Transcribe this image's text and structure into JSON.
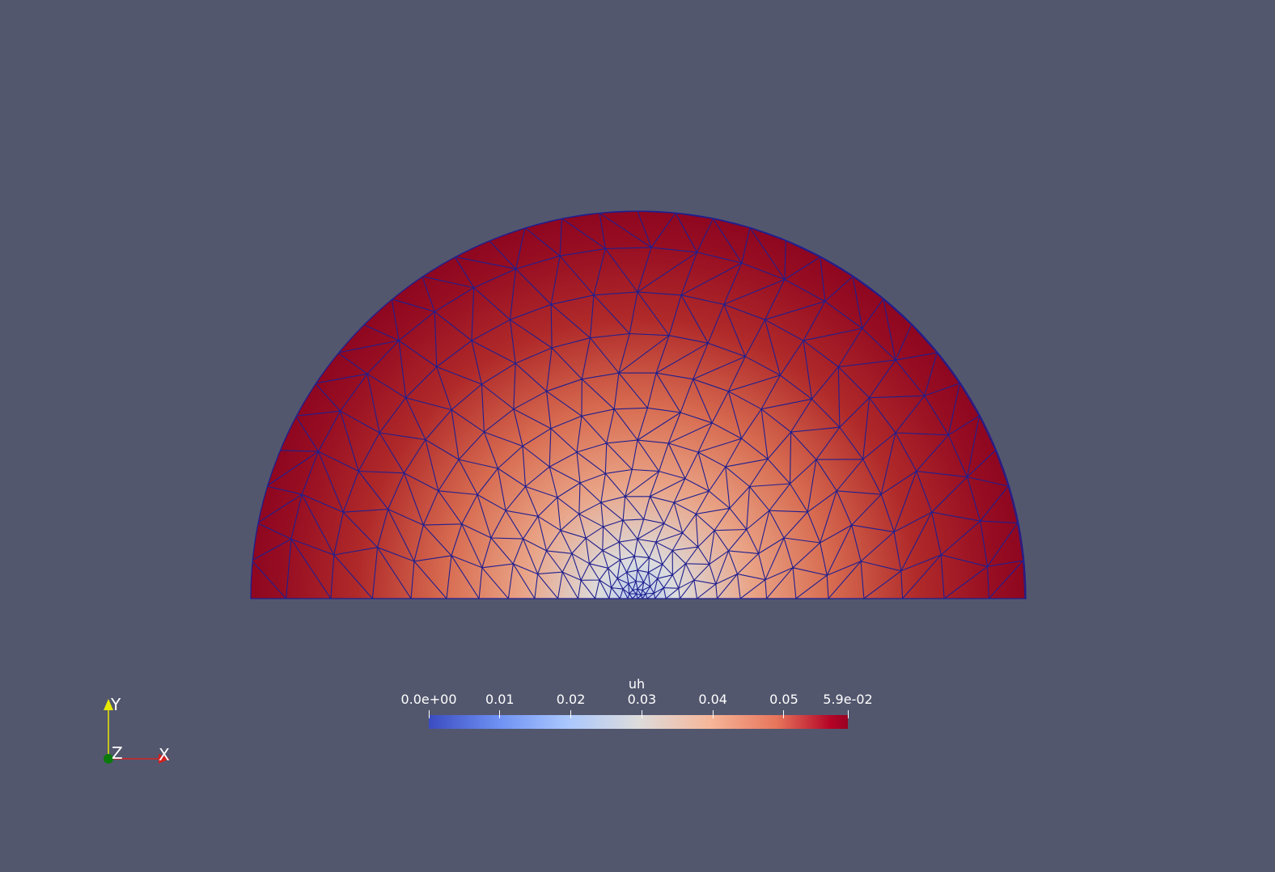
{
  "field_name": "uh",
  "colorbar": {
    "title": "uh",
    "range": [
      0.0,
      0.059
    ],
    "colormap": "cool-to-warm",
    "ticks": [
      {
        "label": "0.0e+00",
        "value": 0.0
      },
      {
        "label": "0.01",
        "value": 0.01
      },
      {
        "label": "0.02",
        "value": 0.02
      },
      {
        "label": "0.03",
        "value": 0.03
      },
      {
        "label": "0.04",
        "value": 0.04
      },
      {
        "label": "0.05",
        "value": 0.05
      },
      {
        "label": "5.9e-02",
        "value": 0.059
      }
    ]
  },
  "mesh": {
    "shape": "half-disk",
    "edge_color": "#1f1f8f",
    "refinement": "graded toward center of bottom edge"
  },
  "axes": {
    "x_label": "X",
    "y_label": "Y",
    "z_label": "Z",
    "x_color": "#d42020",
    "y_color": "#e8e800",
    "z_color": "#0a7a0a"
  },
  "background_color": "#52576e"
}
